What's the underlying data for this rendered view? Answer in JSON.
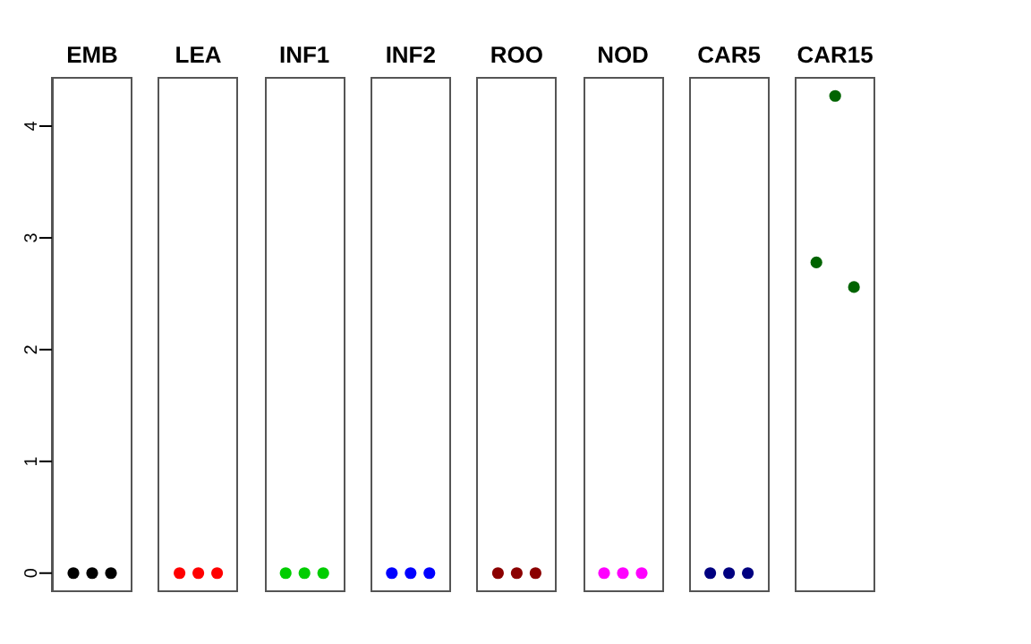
{
  "chart_data": {
    "type": "scatter",
    "categories": [
      "EMB",
      "LEA",
      "INF1",
      "INF2",
      "ROO",
      "NOD",
      "CAR5",
      "CAR15"
    ],
    "series": [
      {
        "colors": [
          "#000000",
          "#ff0000",
          "#00cd00",
          "#0000ff",
          "#8b0000",
          "#ff00ff",
          "#000080",
          "#006400"
        ],
        "values": [
          0,
          0,
          0,
          0,
          0,
          0,
          0,
          2.78
        ]
      },
      {
        "colors": [
          "#000000",
          "#ff0000",
          "#00cd00",
          "#0000ff",
          "#8b0000",
          "#ff00ff",
          "#000080",
          "#006400"
        ],
        "values": [
          0,
          0,
          0,
          0,
          0,
          0,
          0,
          4.27
        ]
      },
      {
        "colors": [
          "#000000",
          "#ff0000",
          "#00cd00",
          "#0000ff",
          "#8b0000",
          "#ff00ff",
          "#000080",
          "#006400"
        ],
        "values": [
          0,
          0,
          0,
          0,
          0,
          0,
          0,
          2.56
        ]
      }
    ],
    "ylim": [
      -0.17,
      4.44
    ],
    "yticks": [
      0,
      1,
      2,
      3,
      4
    ],
    "marker": "circle"
  }
}
